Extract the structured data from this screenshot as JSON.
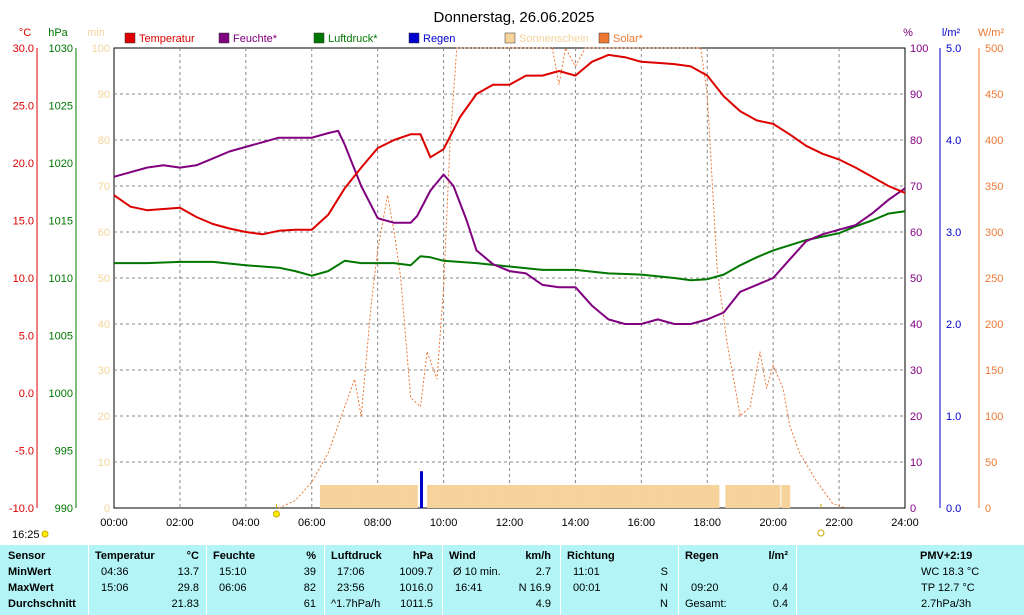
{
  "chart_data": {
    "type": "line",
    "title": "Donnerstag, 26.06.2025",
    "time_ticks": [
      "00:00",
      "02:00",
      "04:00",
      "06:00",
      "08:00",
      "10:00",
      "12:00",
      "14:00",
      "16:00",
      "18:00",
      "20:00",
      "22:00",
      "24:00"
    ],
    "x_unit": "hours",
    "xlim": [
      0,
      24
    ],
    "left_axes": {
      "temp": {
        "label": "°C",
        "ticks": [
          "30.0",
          "25.0",
          "20.0",
          "15.0",
          "10.0",
          "5.0",
          "0.0",
          "-5.0",
          "-10.0"
        ],
        "range": [
          -10,
          30
        ],
        "color": "#dd0000"
      },
      "pressure": {
        "label": "hPa",
        "ticks": [
          "1030",
          "1025",
          "1020",
          "1015",
          "1010",
          "1005",
          "1000",
          "995",
          "990"
        ],
        "range": [
          990,
          1030
        ],
        "color": "#007700"
      },
      "minutes": {
        "label": "min",
        "ticks": [
          "100",
          "90",
          "80",
          "70",
          "60",
          "50",
          "40",
          "30",
          "20",
          "10",
          "0"
        ],
        "range": [
          0,
          100
        ],
        "color": "#f5d39b"
      }
    },
    "right_axes": {
      "humidity": {
        "label": "%",
        "ticks": [
          "100",
          "90",
          "80",
          "70",
          "60",
          "50",
          "40",
          "30",
          "20",
          "10",
          "0"
        ],
        "range": [
          0,
          100
        ],
        "color": "#800080"
      },
      "rain": {
        "label": "l/m²",
        "ticks": [
          "5.0",
          "4.0",
          "3.0",
          "2.0",
          "1.0",
          "0.0"
        ],
        "range": [
          0,
          5
        ],
        "color": "#0000cc"
      },
      "solar": {
        "label": "W/m²",
        "ticks": [
          "500",
          "450",
          "400",
          "350",
          "300",
          "250",
          "200",
          "150",
          "100",
          "50",
          "0"
        ],
        "range": [
          0,
          500
        ],
        "color": "#ee7733"
      }
    },
    "legend_placement": "top",
    "grid": true,
    "series": [
      {
        "name": "Temperatur",
        "axis": "temp",
        "color": "#dd0000",
        "x": [
          0,
          0.5,
          1,
          1.5,
          2,
          2.5,
          3,
          3.5,
          4,
          4.5,
          5,
          5.5,
          6,
          6.5,
          7,
          7.5,
          8,
          8.5,
          9,
          9.3,
          9.6,
          10,
          10.5,
          11,
          11.5,
          12,
          12.5,
          13,
          13.5,
          14,
          14.5,
          15,
          15.5,
          16,
          16.5,
          17,
          17.5,
          18,
          18.5,
          19,
          19.5,
          20,
          20.5,
          21,
          21.5,
          22,
          22.5,
          23,
          23.5,
          24
        ],
        "y": [
          17.2,
          16.2,
          15.9,
          16.0,
          16.1,
          15.3,
          14.7,
          14.3,
          14.0,
          13.8,
          14.1,
          14.2,
          14.2,
          15.5,
          17.8,
          19.6,
          21.3,
          22.0,
          22.5,
          22.5,
          20.5,
          21.2,
          24.0,
          26.0,
          26.8,
          26.8,
          27.6,
          27.6,
          28.0,
          27.6,
          28.8,
          29.4,
          29.2,
          28.8,
          28.7,
          28.6,
          28.4,
          27.6,
          25.8,
          24.5,
          23.7,
          23.4,
          22.5,
          21.5,
          20.8,
          20.3,
          19.6,
          18.8,
          18.0,
          17.4
        ]
      },
      {
        "name": "Feuchte*",
        "axis": "humidity",
        "color": "#800080",
        "x": [
          0,
          0.5,
          1,
          1.5,
          2,
          2.5,
          3,
          3.5,
          4,
          4.5,
          5,
          5.5,
          6,
          6.5,
          6.8,
          7,
          7.5,
          8,
          8.5,
          9,
          9.2,
          9.6,
          10,
          10.3,
          10.7,
          11,
          11.5,
          12,
          12.5,
          13,
          13.5,
          14,
          14.5,
          15,
          15.5,
          16,
          16.5,
          17,
          17.5,
          18,
          18.5,
          19,
          19.5,
          20,
          20.5,
          21,
          21.5,
          22,
          22.5,
          23,
          23.5,
          24
        ],
        "y": [
          72,
          73,
          74,
          74.5,
          74,
          74.5,
          76,
          77.5,
          78.5,
          79.5,
          80.5,
          80.5,
          80.5,
          81.5,
          82,
          79,
          70,
          63,
          62,
          62,
          63.5,
          69,
          72.5,
          70,
          62.5,
          56,
          53,
          51.5,
          51,
          48.5,
          48,
          48,
          44,
          41,
          40,
          40,
          41,
          40,
          40,
          41,
          42.5,
          47,
          48.5,
          50,
          54,
          58,
          59.5,
          60.5,
          61.5,
          64,
          67,
          69.5
        ]
      },
      {
        "name": "Luftdruck*",
        "axis": "pressure",
        "color": "#007700",
        "x": [
          0,
          1,
          2,
          3,
          4,
          5,
          5.5,
          6,
          6.5,
          7,
          7.5,
          8,
          8.5,
          9,
          9.3,
          9.6,
          10,
          11,
          12,
          13,
          14,
          15,
          16,
          17,
          17.5,
          18,
          18.5,
          19,
          19.5,
          20,
          21,
          22,
          22.5,
          23,
          23.5,
          24
        ],
        "y": [
          1011.3,
          1011.3,
          1011.4,
          1011.4,
          1011.1,
          1010.9,
          1010.6,
          1010.2,
          1010.6,
          1011.5,
          1011.3,
          1011.3,
          1011.3,
          1011.1,
          1011.9,
          1011.8,
          1011.5,
          1011.3,
          1011.0,
          1010.7,
          1010.7,
          1010.4,
          1010.3,
          1010.0,
          1009.8,
          1009.9,
          1010.3,
          1011.1,
          1011.8,
          1012.4,
          1013.3,
          1013.9,
          1014.5,
          1015.0,
          1015.6,
          1015.8
        ]
      },
      {
        "name": "Regen",
        "axis": "rain",
        "color": "#0000cc",
        "type": "bar",
        "x": [
          9.33
        ],
        "y": [
          0.4
        ]
      },
      {
        "name": "Sonnenschein",
        "axis": "minutes",
        "color": "#f5d39b",
        "type": "bar",
        "x_start": 6.25,
        "x_end": 20.5,
        "y": 5,
        "gaps": [
          [
            9.2,
            9.5
          ],
          [
            18.33,
            18.55
          ],
          [
            20.2,
            20.25
          ]
        ]
      },
      {
        "name": "Solar*",
        "axis": "solar",
        "color": "#ee7733",
        "style": "dashed",
        "x": [
          5,
          5.5,
          6,
          6.5,
          7,
          7.3,
          7.5,
          7.8,
          8,
          8.3,
          8.5,
          8.7,
          9,
          9.3,
          9.5,
          9.8,
          10,
          10.2,
          10.4,
          10.6,
          10.8,
          11,
          11.3,
          11.7,
          12,
          12.3,
          12.7,
          13,
          13.3,
          13.5,
          13.7,
          14,
          14.3,
          14.7,
          15,
          15.5,
          16,
          16.5,
          17,
          17.5,
          17.8,
          18,
          18.3,
          18.6,
          19,
          19.3,
          19.6,
          19.8,
          20,
          20.3,
          20.5,
          20.8,
          21.3,
          21.8,
          22.2
        ],
        "y": [
          0,
          8,
          28,
          60,
          110,
          140,
          100,
          220,
          280,
          340,
          300,
          250,
          120,
          110,
          170,
          140,
          240,
          400,
          500,
          500,
          500,
          500,
          500,
          500,
          500,
          500,
          500,
          500,
          500,
          460,
          500,
          480,
          500,
          500,
          500,
          500,
          500,
          500,
          500,
          500,
          500,
          450,
          260,
          180,
          100,
          110,
          170,
          130,
          155,
          130,
          90,
          60,
          30,
          5,
          0
        ]
      }
    ],
    "sun_markers": {
      "sunrise": 4.93,
      "sunset": 21.45,
      "now": "16:25"
    }
  },
  "legend": [
    {
      "name": "Temperatur",
      "color": "#dd0000",
      "text_color": "#dd0000"
    },
    {
      "name": "Feuchte*",
      "color": "#800080",
      "text_color": "#800080"
    },
    {
      "name": "Luftdruck*",
      "color": "#007700",
      "text_color": "#007700"
    },
    {
      "name": "Regen",
      "color": "#0000cc",
      "text_color": "#0000cc"
    },
    {
      "name": "Sonnenschein",
      "color": "#f5d39b",
      "text_color": "#f5d39b"
    },
    {
      "name": "Solar*",
      "color": "#ee7733",
      "text_color": "#ee7733"
    }
  ],
  "table": {
    "header": {
      "sensor": "Sensor",
      "temp": "Temperatur",
      "temp_unit": "°C",
      "hum": "Feuchte",
      "hum_unit": "%",
      "press": "Luftdruck",
      "press_unit": "hPa",
      "wind": "Wind",
      "wind_unit": "km/h",
      "dir": "Richtung",
      "rain": "Regen",
      "rain_unit": "l/m²",
      "pmv": "PMV+2:19"
    },
    "min": {
      "label": "MinWert",
      "temp_time": "04:36",
      "temp_val": "13.7",
      "hum_time": "15:10",
      "hum_val": "39",
      "press_time": "17:06",
      "press_val": "1009.7",
      "wind_label": "Ø 10 min.",
      "wind_val": "2.7",
      "dir_time": "11:01",
      "dir_val": "S",
      "rain_time": "",
      "rain_val": "",
      "pmv": "WC 18.3 °C"
    },
    "max": {
      "label": "MaxWert",
      "temp_time": "15:06",
      "temp_val": "29.8",
      "hum_time": "06:06",
      "hum_val": "82",
      "press_time": "23:56",
      "press_val": "1016.0",
      "wind_time": "16:41",
      "wind_val": "N 16.9",
      "dir_time": "00:01",
      "dir_val": "N",
      "rain_time": "09:20",
      "rain_val": "0.4",
      "pmv": "TP 12.7 °C"
    },
    "avg": {
      "label": "Durchschnitt",
      "temp_val": "21.83",
      "hum_val": "61",
      "press_trend": "^1.7hPa/h",
      "press_val": "1011.5",
      "wind_val": "4.9",
      "dir_val": "N",
      "rain_label": "Gesamt:",
      "rain_val": "0.4",
      "pmv": "2.7hPa/3h"
    }
  }
}
